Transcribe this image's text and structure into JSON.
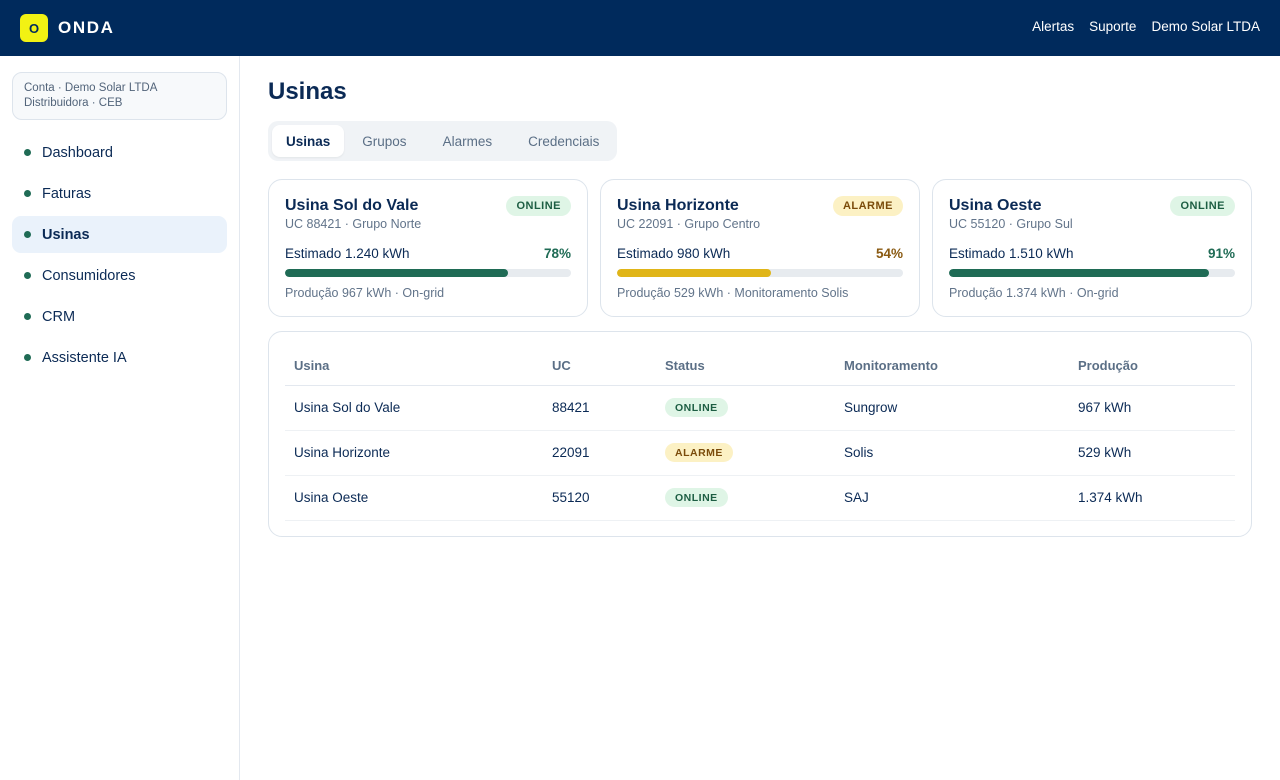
{
  "app": {
    "logo_letter": "O",
    "brand": "ONDA"
  },
  "topnav": [
    "Alertas",
    "Suporte",
    "Demo Solar LTDA"
  ],
  "account": {
    "line1": "Conta · Demo Solar LTDA",
    "line2": "Distribuidora · CEB"
  },
  "sidebar": {
    "items": [
      {
        "label": "Dashboard",
        "active": false
      },
      {
        "label": "Faturas",
        "active": false
      },
      {
        "label": "Usinas",
        "active": true
      },
      {
        "label": "Consumidores",
        "active": false
      },
      {
        "label": "CRM",
        "active": false
      },
      {
        "label": "Assistente IA",
        "active": false
      }
    ]
  },
  "page": {
    "title": "Usinas"
  },
  "tabs": [
    {
      "label": "Usinas",
      "active": true
    },
    {
      "label": "Grupos",
      "active": false
    },
    {
      "label": "Alarmes",
      "active": false
    },
    {
      "label": "Credenciais",
      "active": false
    }
  ],
  "colors": {
    "online_bar": "#1f6b55",
    "alarm_bar": "#e0b518",
    "online_pct": "#1f6b55",
    "alarm_pct": "#8a5a12",
    "header_bg": "#002a5c",
    "logo_bg": "#f2f213"
  },
  "cards": [
    {
      "name": "Usina Sol do Vale",
      "sub": "UC 88421 · Grupo Norte",
      "status": "ONLINE",
      "status_kind": "online",
      "estimated": "Estimado 1.240 kWh",
      "percent_label": "78%",
      "percent": 78,
      "footer": "Produção 967 kWh · On-grid"
    },
    {
      "name": "Usina Horizonte",
      "sub": "UC 22091 · Grupo Centro",
      "status": "ALARME",
      "status_kind": "alarme",
      "estimated": "Estimado 980 kWh",
      "percent_label": "54%",
      "percent": 54,
      "footer": "Produção 529 kWh · Monitoramento Solis"
    },
    {
      "name": "Usina Oeste",
      "sub": "UC 55120 · Grupo Sul",
      "status": "ONLINE",
      "status_kind": "online",
      "estimated": "Estimado 1.510 kWh",
      "percent_label": "91%",
      "percent": 91,
      "footer": "Produção 1.374 kWh · On-grid"
    }
  ],
  "table": {
    "columns": [
      "Usina",
      "UC",
      "Status",
      "Monitoramento",
      "Produção"
    ],
    "rows": [
      {
        "usina": "Usina Sol do Vale",
        "uc": "88421",
        "status": "ONLINE",
        "status_kind": "online",
        "monitoramento": "Sungrow",
        "producao": "967 kWh"
      },
      {
        "usina": "Usina Horizonte",
        "uc": "22091",
        "status": "ALARME",
        "status_kind": "alarme",
        "monitoramento": "Solis",
        "producao": "529 kWh"
      },
      {
        "usina": "Usina Oeste",
        "uc": "55120",
        "status": "ONLINE",
        "status_kind": "online",
        "monitoramento": "SAJ",
        "producao": "1.374 kWh"
      }
    ]
  }
}
